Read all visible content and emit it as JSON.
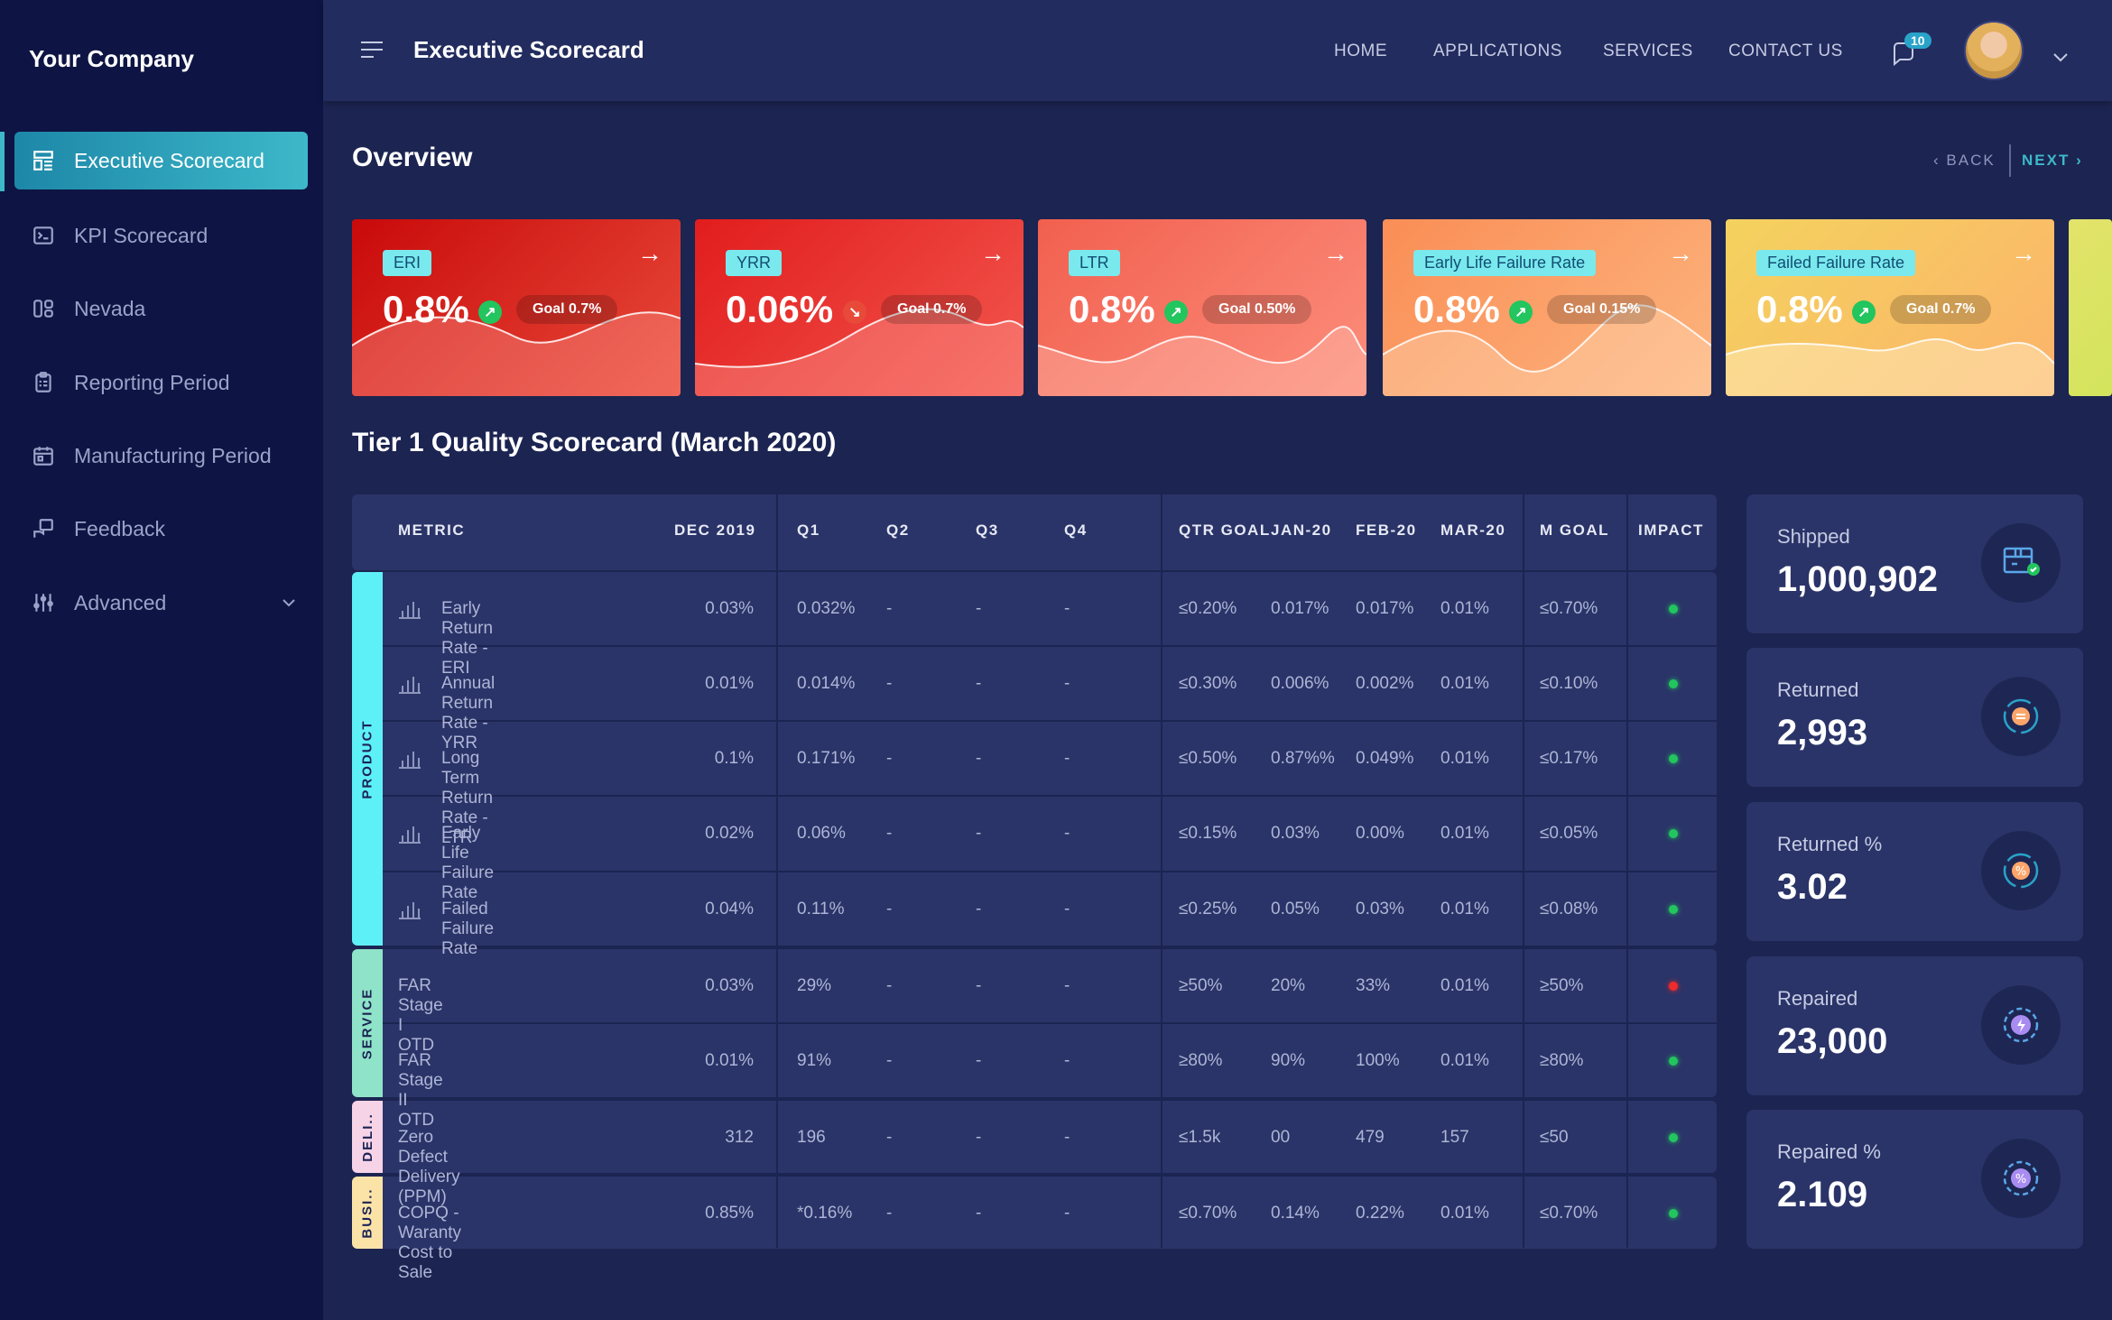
{
  "sidebar": {
    "brand": "Your Company",
    "items": [
      {
        "label": "Executive Scorecard",
        "icon": "dashboard-icon"
      },
      {
        "label": "KPI Scorecard",
        "icon": "terminal-icon"
      },
      {
        "label": "Nevada",
        "icon": "grid-icon"
      },
      {
        "label": "Reporting Period",
        "icon": "clipboard-icon"
      },
      {
        "label": "Manufacturing Period",
        "icon": "calendar-icon"
      },
      {
        "label": "Feedback",
        "icon": "feedback-icon"
      },
      {
        "label": "Advanced",
        "icon": "sliders-icon"
      }
    ]
  },
  "header": {
    "title": "Executive Scorecard",
    "nav": [
      "HOME",
      "APPLICATIONS",
      "SERVICES",
      "CONTACT US"
    ],
    "notification_count": "10"
  },
  "overview": {
    "title": "Overview",
    "back": "BACK",
    "next": "NEXT",
    "cards": [
      {
        "label": "ERI",
        "value": "0.8%",
        "goal": "Goal 0.7%",
        "trend": "up"
      },
      {
        "label": "YRR",
        "value": "0.06%",
        "goal": "Goal 0.7%",
        "trend": "down"
      },
      {
        "label": "LTR",
        "value": "0.8%",
        "goal": "Goal 0.50%",
        "trend": "up"
      },
      {
        "label": "Early Life Failure Rate",
        "value": "0.8%",
        "goal": "Goal 0.15%",
        "trend": "up"
      },
      {
        "label": "Failed Failure Rate",
        "value": "0.8%",
        "goal": "Goal 0.7%",
        "trend": "up"
      }
    ]
  },
  "scorecard": {
    "title": "Tier 1 Quality Scorecard (March 2020)",
    "columns": [
      "METRIC",
      "DEC 2019",
      "Q1",
      "Q2",
      "Q3",
      "Q4",
      "QTR GOAL",
      "JAN-20",
      "FEB-20",
      "MAR-20",
      "M GOAL",
      "IMPACT"
    ],
    "groups": [
      {
        "name": "PRODUCT",
        "color": "#5ef0f7"
      },
      {
        "name": "SERVICE",
        "color": "#8fe3c8"
      },
      {
        "name": "DELI..",
        "color": "#f6d3e6"
      },
      {
        "name": "BUSI..",
        "color": "#fbe3a8"
      }
    ],
    "rows": [
      {
        "metric": "Early Return Rate - ERI",
        "dec": "0.03%",
        "q1": "0.032%",
        "q2": "-",
        "q3": "-",
        "q4": "-",
        "qgoal": "≤0.20%",
        "jan": "0.017%",
        "feb": "0.017%",
        "mar": "0.01%",
        "mgoal": "≤0.70%",
        "impact": "green"
      },
      {
        "metric": "Annual Return Rate - YRR",
        "dec": "0.01%",
        "q1": "0.014%",
        "q2": "-",
        "q3": "-",
        "q4": "-",
        "qgoal": "≤0.30%",
        "jan": "0.006%",
        "feb": "0.002%",
        "mar": "0.01%",
        "mgoal": "≤0.10%",
        "impact": "green"
      },
      {
        "metric": "Long Term Return Rate - LTR",
        "dec": "0.1%",
        "q1": "0.171%",
        "q2": "-",
        "q3": "-",
        "q4": "-",
        "qgoal": "≤0.50%",
        "jan": "0.87%%",
        "feb": "0.049%",
        "mar": "0.01%",
        "mgoal": "≤0.17%",
        "impact": "green"
      },
      {
        "metric": "Early Life Failure Rate",
        "dec": "0.02%",
        "q1": "0.06%",
        "q2": "-",
        "q3": "-",
        "q4": "-",
        "qgoal": "≤0.15%",
        "jan": "0.03%",
        "feb": "0.00%",
        "mar": "0.01%",
        "mgoal": "≤0.05%",
        "impact": "green"
      },
      {
        "metric": "Failed Failure Rate",
        "dec": "0.04%",
        "q1": "0.11%",
        "q2": "-",
        "q3": "-",
        "q4": "-",
        "qgoal": "≤0.25%",
        "jan": "0.05%",
        "feb": "0.03%",
        "mar": "0.01%",
        "mgoal": "≤0.08%",
        "impact": "green"
      },
      {
        "metric": "FAR Stage I OTD",
        "dec": "0.03%",
        "q1": "29%",
        "q2": "-",
        "q3": "-",
        "q4": "-",
        "qgoal": "≥50%",
        "jan": "20%",
        "feb": "33%",
        "mar": "0.01%",
        "mgoal": "≥50%",
        "impact": "red"
      },
      {
        "metric": "FAR Stage II OTD",
        "dec": "0.01%",
        "q1": "91%",
        "q2": "-",
        "q3": "-",
        "q4": "-",
        "qgoal": "≥80%",
        "jan": "90%",
        "feb": "100%",
        "mar": "0.01%",
        "mgoal": "≥80%",
        "impact": "green"
      },
      {
        "metric": "Zero Defect Delivery (PPM)",
        "dec": "312",
        "q1": "196",
        "q2": "-",
        "q3": "-",
        "q4": "-",
        "qgoal": "≤1.5k",
        "jan": "00",
        "feb": "479",
        "mar": "157",
        "mgoal": "≤50",
        "impact": "green"
      },
      {
        "metric": "COPQ - Waranty Cost to Sale",
        "dec": "0.85%",
        "q1": "*0.16%",
        "q2": "-",
        "q3": "-",
        "q4": "-",
        "qgoal": "≤0.70%",
        "jan": "0.14%",
        "feb": "0.22%",
        "mar": "0.01%",
        "mgoal": "≤0.70%",
        "impact": "green"
      }
    ]
  },
  "stats": [
    {
      "label": "Shipped",
      "value": "1,000,902",
      "icon": "shipped-box-icon"
    },
    {
      "label": "Returned",
      "value": "2,993",
      "icon": "returned-cycle-icon"
    },
    {
      "label": "Returned %",
      "value": "3.02",
      "icon": "returned-percent-icon"
    },
    {
      "label": "Repaired",
      "value": "23,000",
      "icon": "repaired-gear-icon"
    },
    {
      "label": "Repaired %",
      "value": "2.109",
      "icon": "repaired-percent-icon"
    }
  ],
  "colors": {
    "accent": "#3db8c9",
    "good": "#22c55e",
    "bad": "#ef2b2b"
  }
}
